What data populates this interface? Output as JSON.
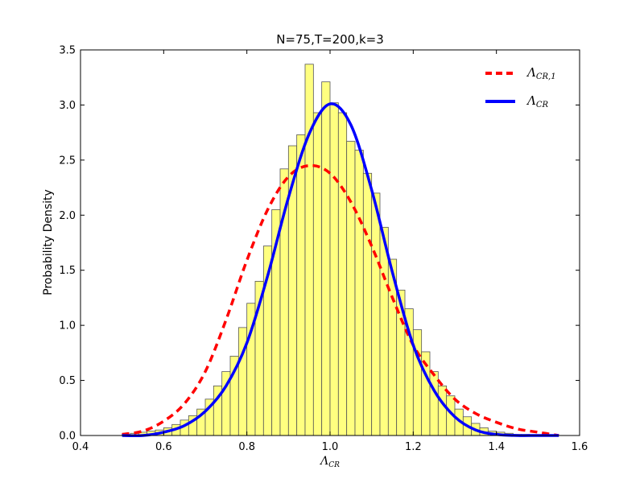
{
  "chart_data": {
    "type": "bar",
    "title": "N=75,T=200,k=3",
    "xlabel": "Λ",
    "xlabel_sub": "CR",
    "ylabel": "Probability Density",
    "xlim": [
      0.4,
      1.6
    ],
    "ylim": [
      0.0,
      3.5
    ],
    "xticks": [
      "0.4",
      "0.6",
      "0.8",
      "1.0",
      "1.2",
      "1.4",
      "1.6"
    ],
    "yticks": [
      "0.0",
      "0.5",
      "1.0",
      "1.5",
      "2.0",
      "2.5",
      "3.0",
      "3.5"
    ],
    "grid": false,
    "legend_position": "top-right",
    "histogram": {
      "name": "",
      "color": "#ffff80",
      "edge_color": "#555555",
      "bin_width": 0.02,
      "bin_starts": [
        0.5,
        0.52,
        0.54,
        0.56,
        0.58,
        0.6,
        0.62,
        0.64,
        0.66,
        0.68,
        0.7,
        0.72,
        0.74,
        0.76,
        0.78,
        0.8,
        0.82,
        0.84,
        0.86,
        0.88,
        0.9,
        0.92,
        0.94,
        0.96,
        0.98,
        1.0,
        1.02,
        1.04,
        1.06,
        1.08,
        1.1,
        1.12,
        1.14,
        1.16,
        1.18,
        1.2,
        1.22,
        1.24,
        1.26,
        1.28,
        1.3,
        1.32,
        1.34,
        1.36,
        1.38,
        1.4,
        1.42,
        1.44,
        1.46,
        1.48,
        1.5,
        1.52
      ],
      "values": [
        0.01,
        0.02,
        0.03,
        0.04,
        0.05,
        0.07,
        0.1,
        0.14,
        0.18,
        0.24,
        0.33,
        0.45,
        0.58,
        0.72,
        0.98,
        1.2,
        1.4,
        1.72,
        2.05,
        2.42,
        2.63,
        2.73,
        3.37,
        2.93,
        3.21,
        3.02,
        2.93,
        2.67,
        2.59,
        2.38,
        2.2,
        1.89,
        1.6,
        1.32,
        1.15,
        0.96,
        0.76,
        0.58,
        0.45,
        0.36,
        0.24,
        0.17,
        0.11,
        0.07,
        0.04,
        0.03,
        0.02,
        0.01,
        0.01,
        0.0,
        0.0,
        0.0
      ]
    },
    "series": [
      {
        "name": "Λ",
        "name_sub": "CR,1",
        "color": "#ff0000",
        "style": "dashed",
        "x": [
          0.5,
          0.55,
          0.6,
          0.65,
          0.7,
          0.75,
          0.8,
          0.85,
          0.9,
          0.95,
          1.0,
          1.05,
          1.1,
          1.15,
          1.2,
          1.25,
          1.3,
          1.35,
          1.4,
          1.45,
          1.5,
          1.55
        ],
        "y": [
          0.01,
          0.04,
          0.13,
          0.29,
          0.58,
          1.05,
          1.59,
          2.05,
          2.35,
          2.45,
          2.38,
          2.12,
          1.72,
          1.25,
          0.82,
          0.55,
          0.33,
          0.2,
          0.12,
          0.06,
          0.03,
          0.0
        ]
      },
      {
        "name": "Λ",
        "name_sub": "CR",
        "color": "#0000ff",
        "style": "solid",
        "x": [
          0.5,
          0.55,
          0.6,
          0.65,
          0.7,
          0.75,
          0.8,
          0.85,
          0.9,
          0.95,
          1.0,
          1.05,
          1.1,
          1.15,
          1.2,
          1.25,
          1.3,
          1.35,
          1.4,
          1.45,
          1.5,
          1.55
        ],
        "y": [
          0.0,
          0.0,
          0.03,
          0.09,
          0.22,
          0.45,
          0.84,
          1.45,
          2.16,
          2.74,
          3.01,
          2.82,
          2.23,
          1.48,
          0.82,
          0.41,
          0.17,
          0.05,
          0.01,
          0.0,
          0.0,
          0.0
        ]
      }
    ]
  }
}
